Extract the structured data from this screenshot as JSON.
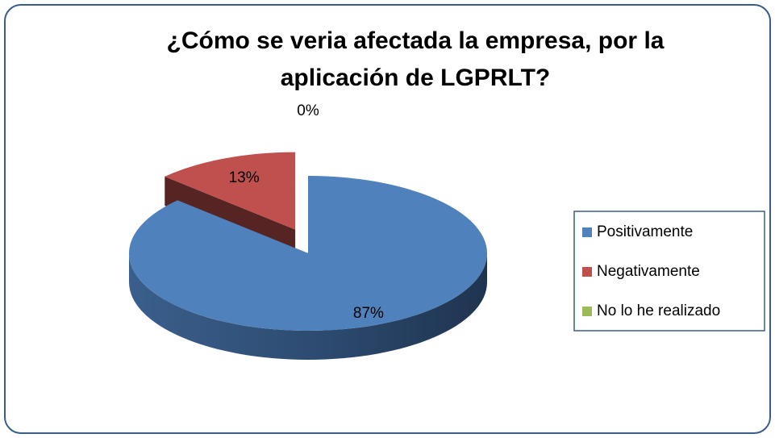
{
  "chart_data": {
    "type": "pie",
    "title": "¿Cómo se veria afectada la empresa, por la aplicación de LGPRLT?",
    "categories": [
      "Positivamente",
      "Negativamente",
      "No lo he realizado"
    ],
    "values": [
      87,
      13,
      0
    ],
    "value_labels": [
      "87%",
      "13%",
      "0%"
    ],
    "colors": [
      "#4f81bd",
      "#c0504d",
      "#9bbb59"
    ],
    "legend": "right"
  }
}
